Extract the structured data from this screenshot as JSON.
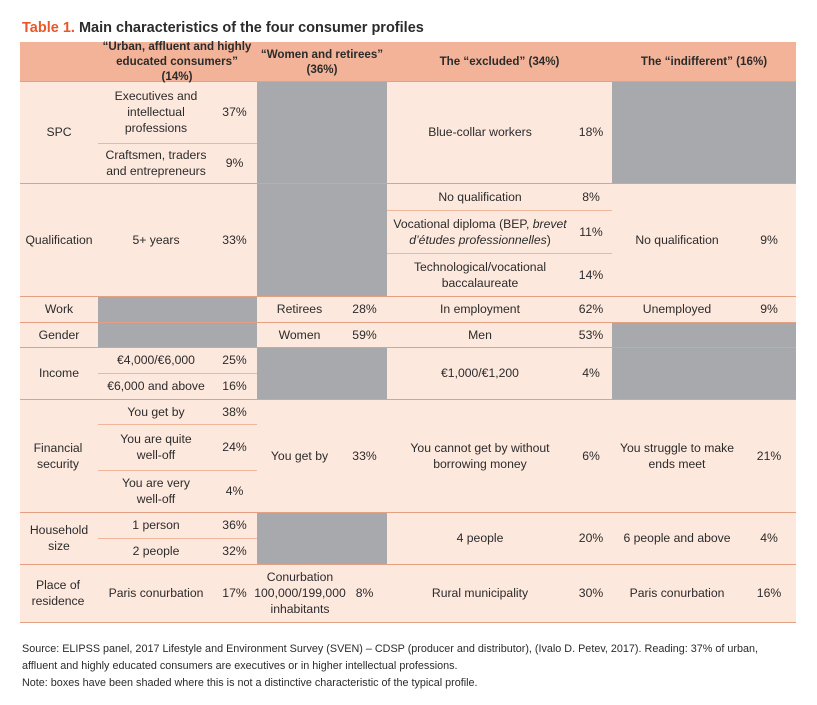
{
  "title": {
    "label": "Table 1.",
    "text": "Main characteristics of the four consumer profiles"
  },
  "headers": {
    "p1": "“Urban, affluent and highly educated consumers” (14%)",
    "p2": "“Women and retirees” (36%)",
    "p3": "The “excluded” (34%)",
    "p4": "The “indifferent” (16%)"
  },
  "rows": {
    "spc": {
      "label": "SPC",
      "p1a": "Executives and intellectual professions",
      "p1a_pct": "37%",
      "p1b": "Craftsmen, traders and entrepreneurs",
      "p1b_pct": "9%",
      "p3": "Blue-collar workers",
      "p3_pct": "18%"
    },
    "qualification": {
      "label": "Qualification",
      "p1": "5+ years",
      "p1_pct": "33%",
      "p3a": "No qualification",
      "p3a_pct": "8%",
      "p3b_prefix": "Vocational diploma (BEP, ",
      "p3b_italic": "brevet d’études professionnelles",
      "p3b_suffix": ")",
      "p3b_pct": "11%",
      "p3c": "Technological/vocational baccalaureate",
      "p3c_pct": "14%",
      "p4": "No qualification",
      "p4_pct": "9%"
    },
    "work": {
      "label": "Work",
      "p2": "Retirees",
      "p2_pct": "28%",
      "p3": "In employment",
      "p3_pct": "62%",
      "p4": "Unemployed",
      "p4_pct": "9%"
    },
    "gender": {
      "label": "Gender",
      "p2": "Women",
      "p2_pct": "59%",
      "p3": "Men",
      "p3_pct": "53%"
    },
    "income": {
      "label": "Income",
      "p1a": "€4,000/€6,000",
      "p1a_pct": "25%",
      "p1b": "€6,000 and above",
      "p1b_pct": "16%",
      "p3": "€1,000/€1,200",
      "p3_pct": "4%"
    },
    "financial": {
      "label": "Financial security",
      "p1a": "You get by",
      "p1a_pct": "38%",
      "p1b": "You are quite well-off",
      "p1b_pct": "24%",
      "p1c": "You are very well-off",
      "p1c_pct": "4%",
      "p2": "You get by",
      "p2_pct": "33%",
      "p3": "You cannot get by without borrowing money",
      "p3_pct": "6%",
      "p4": "You struggle to make ends meet",
      "p4_pct": "21%"
    },
    "household": {
      "label": "Household size",
      "p1a": "1 person",
      "p1a_pct": "36%",
      "p1b": "2 people",
      "p1b_pct": "32%",
      "p3": "4 people",
      "p3_pct": "20%",
      "p4": "6 people and above",
      "p4_pct": "4%"
    },
    "residence": {
      "label": "Place of residence",
      "p1": "Paris conurbation",
      "p1_pct": "17%",
      "p2": "Conurbation 100,000/199,000 inhabitants",
      "p2_pct": "8%",
      "p3": "Rural municipality",
      "p3_pct": "30%",
      "p4": "Paris conurbation",
      "p4_pct": "16%"
    }
  },
  "notes": {
    "source": "Source: ELIPSS panel, 2017 Lifestyle and Environment Survey (SVEN) – CDSP (producer and distributor), (Ivalo D. Petev, 2017). Reading: 37% of urban, affluent and highly educated consumers are executives or in higher intellectual professions.",
    "note": "Note: boxes have been shaded where this is not a distinctive characteristic of the typical profile."
  },
  "colors": {
    "accent": "#e8572a",
    "header_fill": "#f3b399",
    "cell_fill": "#fde8dd",
    "shade": "#a7a9ac"
  }
}
